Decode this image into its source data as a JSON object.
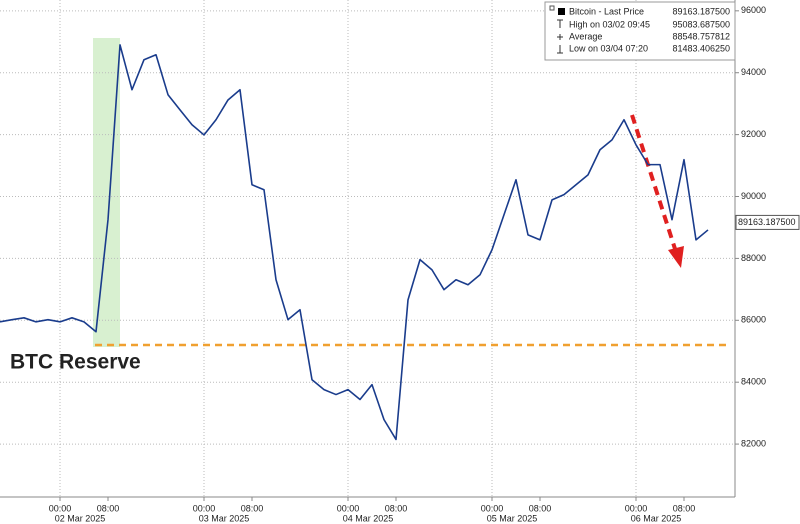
{
  "chart_data": {
    "type": "line",
    "x": [
      "2025-03-01T14:00",
      "2025-03-01T16:00",
      "2025-03-01T18:00",
      "2025-03-01T20:00",
      "2025-03-01T22:00",
      "2025-03-02T00:00",
      "2025-03-02T02:00",
      "2025-03-02T04:00",
      "2025-03-02T06:00",
      "2025-03-02T08:00",
      "2025-03-02T10:00",
      "2025-03-02T12:00",
      "2025-03-02T14:00",
      "2025-03-02T16:00",
      "2025-03-02T18:00",
      "2025-03-02T20:00",
      "2025-03-02T22:00",
      "2025-03-03T00:00",
      "2025-03-03T02:00",
      "2025-03-03T04:00",
      "2025-03-03T06:00",
      "2025-03-03T08:00",
      "2025-03-03T10:00",
      "2025-03-03T12:00",
      "2025-03-03T14:00",
      "2025-03-03T16:00",
      "2025-03-03T18:00",
      "2025-03-03T20:00",
      "2025-03-03T22:00",
      "2025-03-04T00:00",
      "2025-03-04T02:00",
      "2025-03-04T04:00",
      "2025-03-04T06:00",
      "2025-03-04T08:00",
      "2025-03-04T10:00",
      "2025-03-04T12:00",
      "2025-03-04T14:00",
      "2025-03-04T16:00",
      "2025-03-04T18:00",
      "2025-03-04T20:00",
      "2025-03-04T22:00",
      "2025-03-05T00:00",
      "2025-03-05T02:00",
      "2025-03-05T04:00",
      "2025-03-05T06:00",
      "2025-03-05T08:00",
      "2025-03-05T10:00",
      "2025-03-05T12:00",
      "2025-03-05T14:00",
      "2025-03-05T16:00",
      "2025-03-05T18:00",
      "2025-03-05T20:00",
      "2025-03-05T22:00",
      "2025-03-06T00:00",
      "2025-03-06T02:00",
      "2025-03-06T04:00",
      "2025-03-06T06:00",
      "2025-03-06T08:00",
      "2025-03-06T10:00",
      "2025-03-06T12:00"
    ],
    "series": [
      {
        "name": "Bitcoin - Last Price",
        "color": "#1a3c8c",
        "values": [
          85950,
          86020,
          86080,
          85950,
          86020,
          85950,
          86080,
          85950,
          85630,
          89250,
          94900,
          93450,
          94420,
          94580,
          93290,
          92800,
          92320,
          91990,
          92480,
          93120,
          93450,
          90380,
          90220,
          87310,
          86020,
          86340,
          84080,
          83760,
          83600,
          83760,
          83440,
          83920,
          82790,
          82150,
          86660,
          87960,
          87630,
          86990,
          87310,
          87150,
          87470,
          88280,
          89410,
          90540,
          88760,
          88600,
          89890,
          90060,
          90380,
          90700,
          91510,
          91830,
          92480,
          91670,
          91030,
          91030,
          89250,
          91190,
          88600,
          88920
        ]
      }
    ],
    "xlim": [
      "2025-03-01T14:00",
      "2025-03-06T16:30"
    ],
    "xticks": [
      {
        "value": "2025-03-02T00:00",
        "label": "00:00"
      },
      {
        "value": "2025-03-02T08:00",
        "label": "08:00"
      },
      {
        "value": "2025-03-03T00:00",
        "label": "00:00"
      },
      {
        "value": "2025-03-03T08:00",
        "label": "08:00"
      },
      {
        "value": "2025-03-04T00:00",
        "label": "00:00"
      },
      {
        "value": "2025-03-04T08:00",
        "label": "08:00"
      },
      {
        "value": "2025-03-05T00:00",
        "label": "00:00"
      },
      {
        "value": "2025-03-05T08:00",
        "label": "08:00"
      },
      {
        "value": "2025-03-06T00:00",
        "label": "00:00"
      },
      {
        "value": "2025-03-06T08:00",
        "label": "08:00"
      }
    ],
    "date_labels": [
      {
        "value": "2025-03-02T00:00",
        "label": "02 Mar 2025"
      },
      {
        "value": "2025-03-03T00:00",
        "label": "03 Mar 2025"
      },
      {
        "value": "2025-03-04T00:00",
        "label": "04 Mar 2025"
      },
      {
        "value": "2025-03-05T00:00",
        "label": "05 Mar 2025"
      },
      {
        "value": "2025-03-06T00:00",
        "label": "06 Mar 2025"
      }
    ],
    "ylim": [
      80290,
      96350
    ],
    "yticks": [
      82000,
      84000,
      86000,
      88000,
      90000,
      92000,
      94000,
      96000
    ],
    "grid": true,
    "legend_corner": "top-right",
    "legend": [
      {
        "label": "Bitcoin - Last Price",
        "value": "89163.187500"
      },
      {
        "label": "High on 03/02 09:45",
        "value": "95083.687500"
      },
      {
        "label": "Average",
        "value": "88548.757812"
      },
      {
        "label": "Low on 03/04 07:20",
        "value": "81483.406250"
      }
    ],
    "last_price": {
      "value": 89163.1875,
      "label": "89163.187500"
    },
    "reference_line": {
      "label": "BTC Reserve",
      "value": 85200,
      "color": "#f0a030"
    },
    "highlight": {
      "from": "2025-03-02T05:30",
      "to": "2025-03-02T10:00",
      "color": "#d8f0d0"
    }
  }
}
